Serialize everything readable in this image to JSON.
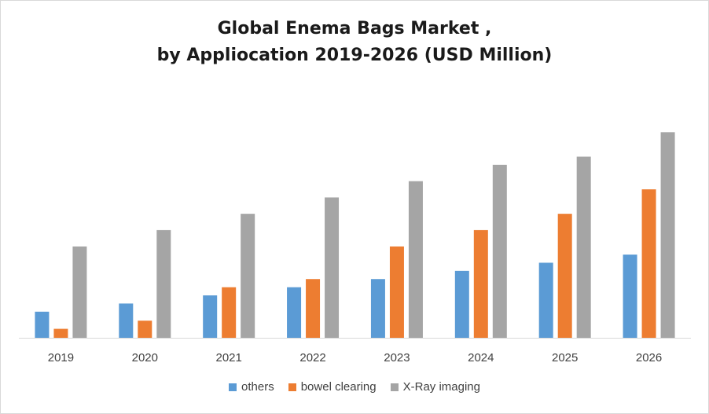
{
  "chart_data": {
    "type": "bar",
    "title_line1": "Global Enema Bags Market ,",
    "title_line2": "by Appliocation 2019-2026 (USD Million)",
    "xlabel": "",
    "ylabel": "",
    "categories": [
      "2019",
      "2020",
      "2021",
      "2022",
      "2023",
      "2024",
      "2025",
      "2026"
    ],
    "series": [
      {
        "name": "others",
        "color": "#5b9bd5",
        "values": [
          32,
          42,
          52,
          62,
          72,
          82,
          92,
          102
        ]
      },
      {
        "name": "bowel clearing",
        "color": "#ed7d31",
        "values": [
          11,
          21,
          62,
          72,
          112,
          132,
          152,
          182
        ]
      },
      {
        "name": "X-Ray imaging",
        "color": "#a5a5a5",
        "values": [
          112,
          132,
          152,
          172,
          192,
          212,
          222,
          252
        ]
      }
    ],
    "ylim": [
      0,
      260
    ],
    "grid": false,
    "legend_position": "bottom"
  }
}
